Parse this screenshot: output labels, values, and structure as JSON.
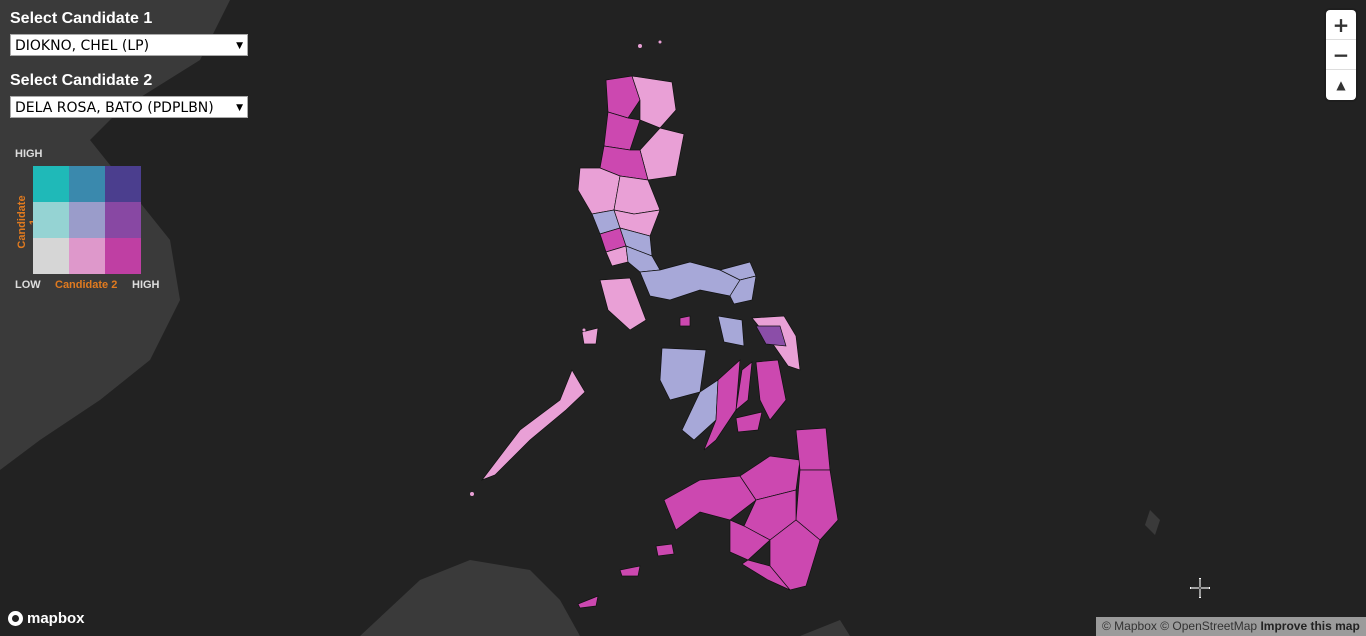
{
  "controls": {
    "candidate1_label": "Select Candidate 1",
    "candidate1_value": "DIOKNO, CHEL (LP)",
    "candidate2_label": "Select Candidate 2",
    "candidate2_value": "DELA ROSA, BATO (PDPLBN)"
  },
  "legend": {
    "high_top": "HIGH",
    "low": "LOW",
    "high_right": "HIGH",
    "axis_candidate1": "Candidate 1",
    "axis_candidate2": "Candidate 2",
    "colors": [
      [
        "#1fb9b8",
        "#3a89ad",
        "#4b3e8e"
      ],
      [
        "#95d3d3",
        "#9a9cca",
        "#8848a3"
      ],
      [
        "#d6d6d6",
        "#de98cb",
        "#bf3fa3"
      ]
    ]
  },
  "map_controls": {
    "zoom_in": "+",
    "zoom_out": "−",
    "compass": "▲"
  },
  "attribution": {
    "mapbox": "© Mapbox",
    "osm": "© OpenStreetMap",
    "improve": "Improve this map"
  },
  "logo": {
    "text": "mapbox"
  },
  "colors": {
    "background": "#222222",
    "land": "#3a3a3a",
    "pink_light": "#e9a0d6",
    "lavender": "#a7a8d8",
    "magenta": "#cc48b0",
    "purple": "#8b4ea8"
  }
}
